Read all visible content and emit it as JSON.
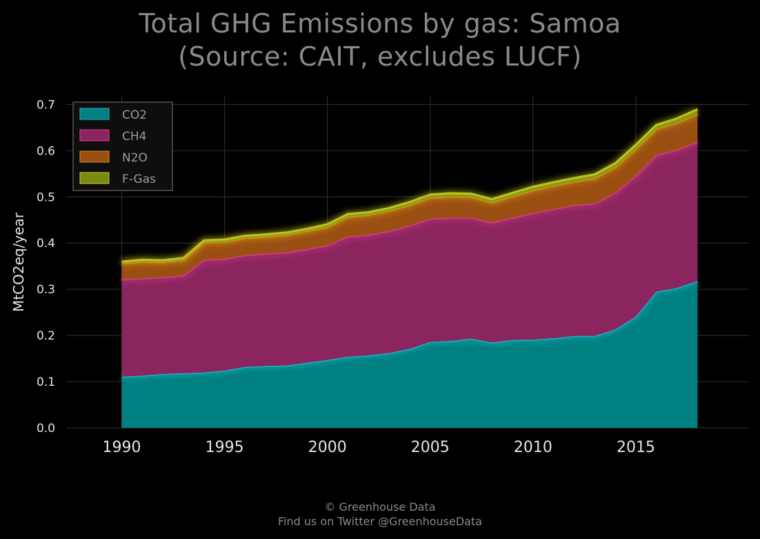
{
  "title": {
    "line1": "Total GHG Emissions by gas: Samoa",
    "line2": "(Source: CAIT, excludes LUCF)"
  },
  "footer": {
    "credit": "© Greenhouse Data",
    "twitter": "Find us on Twitter @GreenhouseData"
  },
  "colors": {
    "background": "#000000",
    "grid": "#2a2a2a",
    "CO2": "#008080",
    "CO2_line": "#1fb8c8",
    "CH4": "#8b2560",
    "CH4_line": "#e0408a",
    "N2O": "#9a4f12",
    "N2O_line": "#d88a1a",
    "F-Gas": "#7a8a10",
    "F-Gas_line": "#c8d020"
  },
  "chart_data": {
    "type": "area",
    "stacked": true,
    "title": "Total GHG Emissions by gas: Samoa\n(Source: CAIT, excludes LUCF)",
    "xlabel": "",
    "ylabel": "MtCO2eq/year",
    "xlim": [
      1990,
      2018
    ],
    "ylim": [
      0,
      0.72
    ],
    "x_ticks": [
      1990,
      1995,
      2000,
      2005,
      2010,
      2015
    ],
    "y_ticks": [
      0.0,
      0.1,
      0.2,
      0.3,
      0.4,
      0.5,
      0.6,
      0.7
    ],
    "y_tick_labels": [
      "0.0",
      "0.1",
      "0.2",
      "0.3",
      "0.4",
      "0.5",
      "0.6",
      "0.7"
    ],
    "grid": true,
    "legend_position": "top-left",
    "x": [
      1990,
      1991,
      1992,
      1993,
      1994,
      1995,
      1996,
      1997,
      1998,
      1999,
      2000,
      2001,
      2002,
      2003,
      2004,
      2005,
      2006,
      2007,
      2008,
      2009,
      2010,
      2011,
      2012,
      2013,
      2014,
      2015,
      2016,
      2017,
      2018
    ],
    "series": [
      {
        "name": "CO2",
        "values": [
          0.111,
          0.113,
          0.117,
          0.118,
          0.12,
          0.124,
          0.132,
          0.134,
          0.135,
          0.141,
          0.147,
          0.154,
          0.157,
          0.162,
          0.171,
          0.186,
          0.188,
          0.193,
          0.185,
          0.19,
          0.191,
          0.194,
          0.199,
          0.199,
          0.213,
          0.241,
          0.295,
          0.303,
          0.318
        ]
      },
      {
        "name": "CH4",
        "values": [
          0.21,
          0.211,
          0.209,
          0.212,
          0.244,
          0.242,
          0.242,
          0.243,
          0.245,
          0.246,
          0.248,
          0.26,
          0.261,
          0.264,
          0.267,
          0.267,
          0.267,
          0.262,
          0.26,
          0.265,
          0.274,
          0.28,
          0.283,
          0.287,
          0.296,
          0.305,
          0.296,
          0.299,
          0.301
        ]
      },
      {
        "name": "N2O",
        "values": [
          0.035,
          0.036,
          0.033,
          0.034,
          0.038,
          0.037,
          0.037,
          0.037,
          0.038,
          0.039,
          0.04,
          0.043,
          0.043,
          0.044,
          0.044,
          0.045,
          0.046,
          0.045,
          0.043,
          0.046,
          0.049,
          0.05,
          0.051,
          0.054,
          0.055,
          0.058,
          0.056,
          0.058,
          0.06
        ]
      },
      {
        "name": "F-Gas",
        "values": [
          0.004,
          0.004,
          0.004,
          0.004,
          0.004,
          0.005,
          0.005,
          0.005,
          0.005,
          0.005,
          0.006,
          0.006,
          0.006,
          0.006,
          0.007,
          0.007,
          0.007,
          0.007,
          0.007,
          0.008,
          0.008,
          0.008,
          0.008,
          0.009,
          0.009,
          0.009,
          0.009,
          0.01,
          0.011
        ]
      }
    ]
  }
}
